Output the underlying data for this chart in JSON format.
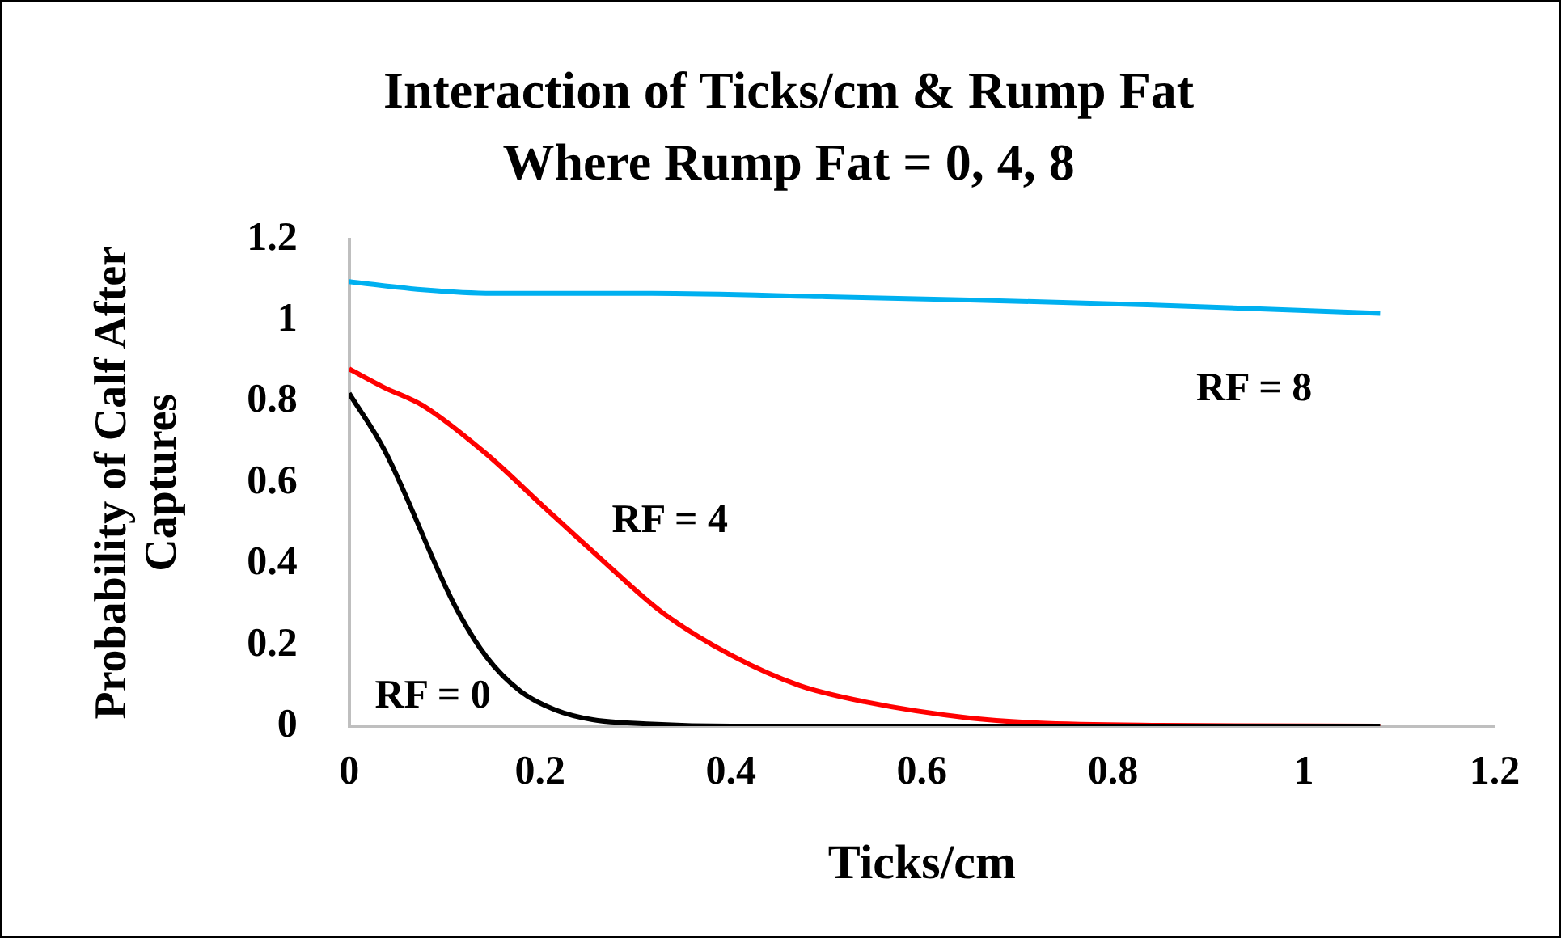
{
  "chart_data": {
    "type": "line",
    "title": "Interaction of Ticks/cm & Rump Fat",
    "subtitle": "Where Rump Fat = 0, 4, 8",
    "xlabel": "Ticks/cm",
    "ylabel": "Probability of Calf After Captures",
    "xlim": [
      0,
      1.2
    ],
    "xticks": [
      0,
      0.2,
      0.4,
      0.6,
      0.8,
      1,
      1.2
    ],
    "ylim": [
      0,
      1.2
    ],
    "yticks": [
      0,
      0.2,
      0.4,
      0.6,
      0.8,
      1,
      1.2
    ],
    "grid": false,
    "legend": false,
    "marker": "none",
    "line_style": "solid",
    "series": [
      {
        "name": "RF = 0",
        "color": "#000000",
        "x": [
          0,
          0.037,
          0.11,
          0.144,
          0.18,
          0.216,
          0.255,
          0.317,
          0.4,
          0.6,
          0.8,
          1.08
        ],
        "values": [
          0.82,
          0.68,
          0.3,
          0.17,
          0.085,
          0.04,
          0.016,
          0.005,
          0,
          0,
          0,
          0
        ]
      },
      {
        "name": "RF = 4",
        "color": "#ff0000",
        "x": [
          0,
          0.036,
          0.077,
          0.144,
          0.204,
          0.26,
          0.328,
          0.4,
          0.472,
          0.54,
          0.65,
          0.72,
          0.85,
          1.08
        ],
        "values": [
          0.88,
          0.835,
          0.79,
          0.67,
          0.54,
          0.42,
          0.28,
          0.175,
          0.1,
          0.06,
          0.02,
          0.008,
          0.002,
          0
        ]
      },
      {
        "name": "RF = 8",
        "color": "#00b0f0",
        "x": [
          0,
          0.077,
          0.15,
          0.317,
          0.5,
          0.65,
          0.836,
          1.08
        ],
        "values": [
          1.095,
          1.075,
          1.066,
          1.066,
          1.058,
          1.05,
          1.038,
          1.017
        ]
      }
    ]
  }
}
